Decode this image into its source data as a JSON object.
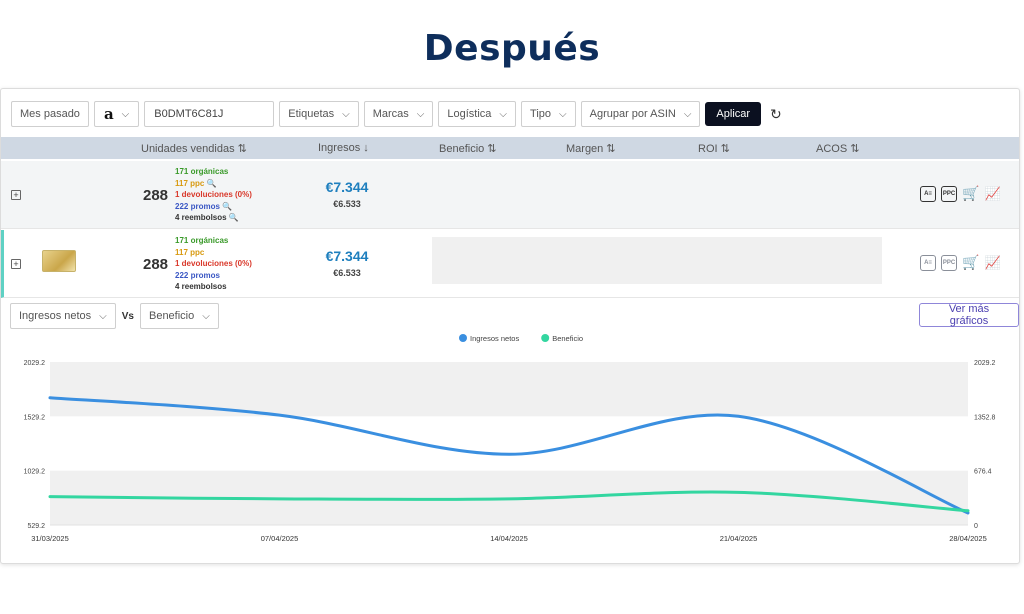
{
  "page_title": "Después",
  "filters": {
    "period": "Mes pasado",
    "marketplace_icon": "amazon-logo",
    "marketplace_letter": "a",
    "asin_value": "B0DMT6C81J",
    "tags": "Etiquetas",
    "brands": "Marcas",
    "logistics": "Logística",
    "type": "Tipo",
    "group_by": "Agrupar por ASIN",
    "apply": "Aplicar",
    "reset_icon": "refresh-icon"
  },
  "table": {
    "headers": [
      {
        "label": "Unidades vendidas",
        "sort": "⇅"
      },
      {
        "label": "Ingresos",
        "sort": "↓"
      },
      {
        "label": "Beneficio",
        "sort": "⇅"
      },
      {
        "label": "Margen",
        "sort": "⇅"
      },
      {
        "label": "ROI",
        "sort": "⇅"
      },
      {
        "label": "ACOS",
        "sort": "⇅"
      }
    ],
    "rows": [
      {
        "expand": "+",
        "units": "288",
        "organic": "171 orgánicas",
        "ppc": "117 ppc",
        "returns": "1 devoluciones (0%)",
        "promos": "222 promos",
        "refunds": "4 reembolsos",
        "revenue": "€7.344",
        "revenue_sub": "€6.533"
      },
      {
        "expand": "+",
        "units": "288",
        "organic": "171 orgánicas",
        "ppc": "117 ppc",
        "returns": "1 devoluciones (0%)",
        "promos": "222 promos",
        "refunds": "4 reembolsos",
        "revenue": "€7.344",
        "revenue_sub": "€6.533"
      }
    ],
    "action_labels": {
      "a": "A≡",
      "ppc": "PPC"
    }
  },
  "chart_controls": {
    "metric_a": "Ingresos netos",
    "vs": "Vs",
    "metric_b": "Beneficio",
    "more": "Ver más gráficos"
  },
  "chart_data": {
    "type": "line",
    "x": [
      "31/03/2025",
      "07/04/2025",
      "14/04/2025",
      "21/04/2025",
      "28/04/2025"
    ],
    "series": [
      {
        "name": "Ingresos netos",
        "color": "#3a8fe0",
        "axis": "left",
        "values": [
          1700,
          1540,
          1180,
          1530,
          640
        ]
      },
      {
        "name": "Beneficio",
        "color": "#33d6a0",
        "axis": "left",
        "values": [
          790,
          770,
          770,
          830,
          660
        ]
      }
    ],
    "y_left_ticks": [
      "2029.2",
      "1529.2",
      "1029.2",
      "529.2"
    ],
    "y_left_range": [
      529.2,
      2029.2
    ],
    "y_right_ticks": [
      "2029.2",
      "1352.8",
      "676.4",
      "0"
    ],
    "y_right_range": [
      0,
      2029.2
    ],
    "legend_position": "top-center",
    "grid": "alternating-bands"
  }
}
